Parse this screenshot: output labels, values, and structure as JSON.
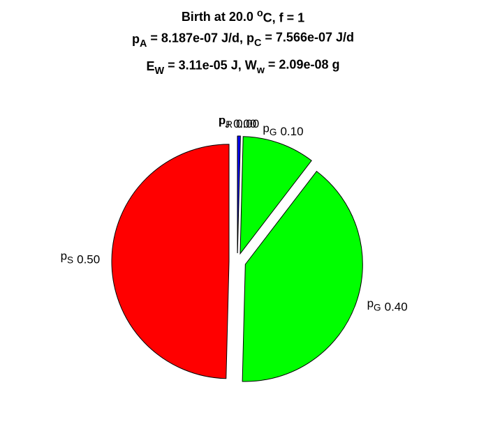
{
  "chart_data": {
    "type": "pie",
    "title": [
      [
        {
          "text": "Birth at 20.0 "
        },
        {
          "text": "o",
          "script": "sup"
        },
        {
          "text": "C, f = 1"
        }
      ],
      [
        {
          "text": "p"
        },
        {
          "text": "A",
          "script": "sub"
        },
        {
          "text": " = 8.187e-07 J/d, p"
        },
        {
          "text": "C",
          "script": "sub"
        },
        {
          "text": " = 7.566e-07 J/d"
        }
      ],
      [
        {
          "text": "E"
        },
        {
          "text": "W",
          "script": "sub"
        },
        {
          "text": " = 3.11e-05 J, W"
        },
        {
          "text": "w",
          "script": "sub"
        },
        {
          "text": " = 2.09e-08 g"
        }
      ]
    ],
    "labels": [
      [
        {
          "text": "p"
        },
        {
          "text": "J",
          "script": "sub"
        }
      ],
      [
        {
          "text": "p"
        },
        {
          "text": "R",
          "script": "sub"
        }
      ],
      [
        {
          "text": "p"
        },
        {
          "text": "G",
          "script": "sub"
        }
      ],
      [
        {
          "text": "p"
        },
        {
          "text": "G",
          "script": "sub"
        }
      ],
      [
        {
          "text": "p"
        },
        {
          "text": "S",
          "script": "sub"
        }
      ]
    ],
    "values": [
      0,
      0.004,
      0.1,
      0.4,
      0.496
    ],
    "value_labels": [
      "0.00",
      "0.00",
      "0.10",
      "0.40",
      "0.50"
    ],
    "colors": [
      "#0000ff",
      "#0000ff",
      "#00ff00",
      "#00ff00",
      "#ff0000"
    ],
    "exploded": true
  }
}
